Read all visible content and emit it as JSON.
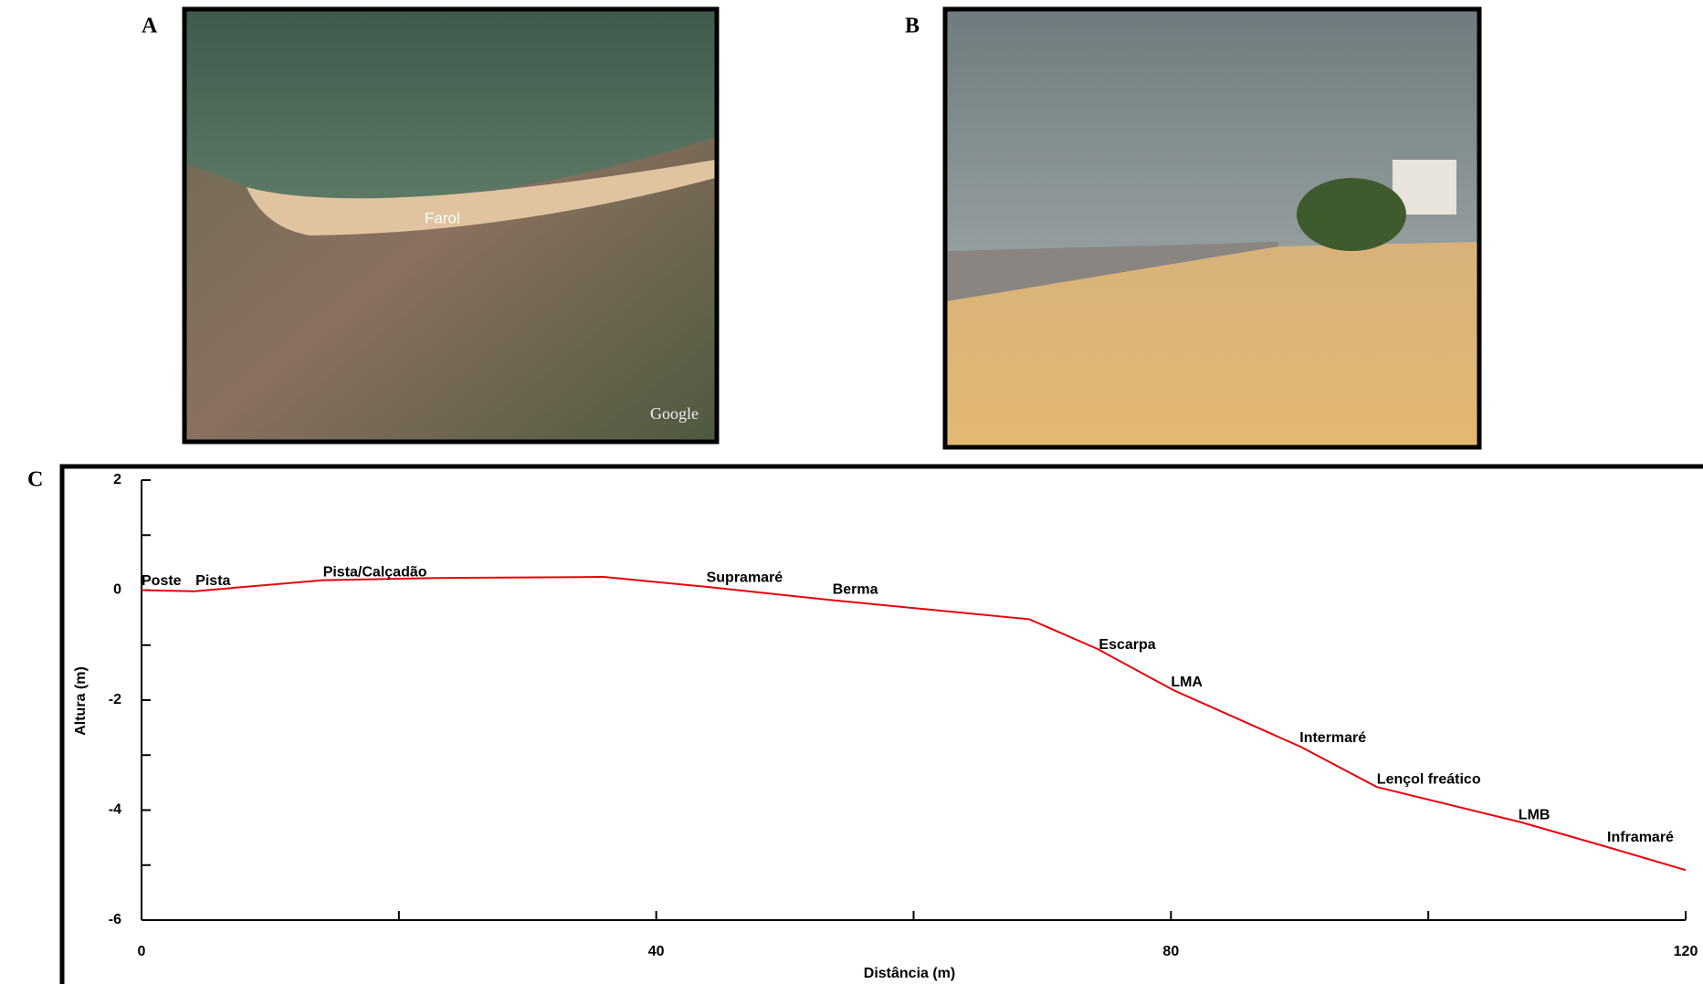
{
  "panels": {
    "a": {
      "label": "A",
      "map_labels": [
        "Farol",
        "Google"
      ]
    },
    "b": {
      "label": "B"
    },
    "c": {
      "label": "C"
    }
  },
  "chart_data": {
    "type": "line",
    "x_label": "Distância (m)",
    "y_label": "Altura (m)",
    "x": [
      0,
      4.1,
      14.1,
      22.8,
      35.9,
      43.9,
      53.6,
      69,
      74.3,
      80.2,
      90.1,
      96,
      107.2,
      113.9,
      120
    ],
    "values": [
      0,
      -0.02,
      0.18,
      0.22,
      0.24,
      0.06,
      -0.18,
      -0.53,
      -1.07,
      -1.82,
      -2.85,
      -3.58,
      -4.22,
      -4.67,
      -5.09
    ],
    "color": "#e8000b",
    "xlim": [
      0,
      120
    ],
    "xticks": [
      0,
      40,
      80,
      120
    ],
    "xminor_ticks": [
      20,
      60,
      100
    ],
    "ylim": [
      -6,
      2
    ],
    "yticks": [
      -6,
      -4,
      -2,
      0,
      2
    ],
    "yminor_ticks": [
      -5,
      -3,
      -1,
      1
    ],
    "annotations": [
      {
        "text": "Poste",
        "x": 0,
        "y": 0.16
      },
      {
        "text": "Pista",
        "x": 4.2,
        "y": 0.16
      },
      {
        "text": "Pista/Calçadão",
        "x": 14.1,
        "y": 0.32
      },
      {
        "text": "Supramaré",
        "x": 43.9,
        "y": 0.22
      },
      {
        "text": "Berma",
        "x": 53.7,
        "y": 0
      },
      {
        "text": "Escarpa",
        "x": 74.4,
        "y": -1.0
      },
      {
        "text": "LMA",
        "x": 80,
        "y": -1.68
      },
      {
        "text": "Intermaré",
        "x": 90,
        "y": -2.69
      },
      {
        "text": "Lençol freático",
        "x": 96,
        "y": -3.45
      },
      {
        "text": "LMB",
        "x": 107,
        "y": -4.1
      },
      {
        "text": "Inframaré",
        "x": 113.9,
        "y": -4.5
      }
    ]
  }
}
